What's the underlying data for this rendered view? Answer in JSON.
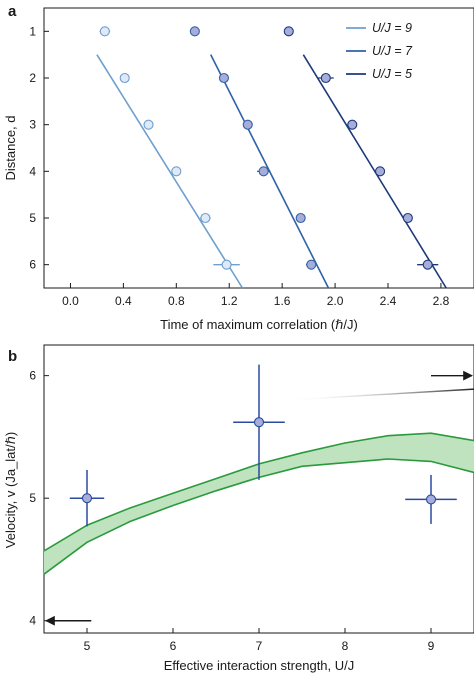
{
  "colors": {
    "u9": "#6e9fcf",
    "u7": "#2f63a8",
    "u5": "#1c3a7a",
    "band_fill": "#bfe3bf",
    "band_line": "#2a9a3c",
    "marker_light": "#dfe9f8",
    "marker_dark": "#a7acd9",
    "errorbar": "#2a4aa0"
  },
  "chart_data": [
    {
      "panel": "a",
      "type": "scatter",
      "xlabel": "Time of maximum correlation (ℏ/J)",
      "ylabel": "Distance, d",
      "xlim": [
        -0.2,
        3.05
      ],
      "ylim": [
        6.5,
        0.5
      ],
      "y_inverted": true,
      "xticks": [
        "0.0",
        "0.4",
        "0.8",
        "1.2",
        "1.6",
        "2.0",
        "2.4",
        "2.8"
      ],
      "xtick_values": [
        0,
        0.4,
        0.8,
        1.2,
        1.6,
        2.0,
        2.4,
        2.8
      ],
      "yticks": [
        "1",
        "2",
        "3",
        "4",
        "5",
        "6"
      ],
      "ytick_values": [
        1,
        2,
        3,
        4,
        5,
        6
      ],
      "legend_position": "top-right",
      "series": [
        {
          "name": "U/J = 9",
          "color_key": "u9",
          "points": [
            {
              "d": 1,
              "t": 0.26,
              "err": 0.04
            },
            {
              "d": 2,
              "t": 0.41,
              "err": 0.02
            },
            {
              "d": 3,
              "t": 0.59,
              "err": 0.02
            },
            {
              "d": 4,
              "t": 0.8,
              "err": 0.02
            },
            {
              "d": 5,
              "t": 1.02,
              "err": 0.04
            },
            {
              "d": 6,
              "t": 1.18,
              "err": 0.1
            }
          ],
          "fit": [
            {
              "t": 0.2,
              "d": 1.5
            },
            {
              "t": 1.3,
              "d": 6.5
            }
          ]
        },
        {
          "name": "U/J = 7",
          "color_key": "u7",
          "points": [
            {
              "d": 1,
              "t": 0.94,
              "err": 0.0
            },
            {
              "d": 2,
              "t": 1.16,
              "err": 0.02
            },
            {
              "d": 3,
              "t": 1.34,
              "err": 0.02
            },
            {
              "d": 4,
              "t": 1.46,
              "err": 0.05
            },
            {
              "d": 5,
              "t": 1.74,
              "err": 0.03
            },
            {
              "d": 6,
              "t": 1.82,
              "err": 0.04
            }
          ],
          "fit": [
            {
              "t": 1.06,
              "d": 1.5
            },
            {
              "t": 1.95,
              "d": 6.5
            }
          ]
        },
        {
          "name": "U/J = 5",
          "color_key": "u5",
          "points": [
            {
              "d": 1,
              "t": 1.65,
              "err": 0.0
            },
            {
              "d": 2,
              "t": 1.93,
              "err": 0.06
            },
            {
              "d": 3,
              "t": 2.13,
              "err": 0.03
            },
            {
              "d": 4,
              "t": 2.34,
              "err": 0.03
            },
            {
              "d": 5,
              "t": 2.55,
              "err": 0.03
            },
            {
              "d": 6,
              "t": 2.7,
              "err": 0.08
            }
          ],
          "fit": [
            {
              "t": 1.76,
              "d": 1.5
            },
            {
              "t": 2.84,
              "d": 6.5
            }
          ]
        }
      ]
    },
    {
      "panel": "b",
      "type": "scatter",
      "xlabel": "Effective interaction strength, U/J",
      "ylabel": "Velocity, v (Ja_lat/ℏ)",
      "xlim": [
        4.5,
        9.5
      ],
      "ylim": [
        3.9,
        6.25
      ],
      "xticks": [
        "5",
        "6",
        "7",
        "8",
        "9"
      ],
      "xtick_values": [
        5,
        6,
        7,
        8,
        9
      ],
      "yticks": [
        "4",
        "5",
        "6"
      ],
      "ytick_values": [
        4,
        5,
        6
      ],
      "points": [
        {
          "x": 5,
          "y": 5.0,
          "xerr": 0.2,
          "yerr": 0.23
        },
        {
          "x": 7,
          "y": 5.62,
          "xerr": 0.3,
          "yerr": 0.47
        },
        {
          "x": 9,
          "y": 4.99,
          "xerr": 0.3,
          "yerr": 0.2
        }
      ],
      "band": {
        "x": [
          4.5,
          5.0,
          5.5,
          6.0,
          6.5,
          7.0,
          7.5,
          8.0,
          8.5,
          9.0,
          9.5
        ],
        "lower": [
          4.38,
          4.64,
          4.81,
          4.94,
          5.06,
          5.17,
          5.26,
          5.29,
          5.32,
          5.3,
          5.21
        ],
        "upper": [
          4.57,
          4.78,
          4.92,
          5.04,
          5.16,
          5.28,
          5.37,
          5.45,
          5.51,
          5.53,
          5.47
        ]
      },
      "arrows": [
        {
          "direction": "right",
          "x_start": 9.0,
          "x_end": 9.5,
          "y": 6.0
        },
        {
          "direction": "left",
          "x_start": 5.05,
          "x_end": 4.5,
          "y": 4.0
        }
      ],
      "gradient_line": [
        {
          "x": 7.3,
          "y": 5.8
        },
        {
          "x": 9.5,
          "y": 5.89
        }
      ]
    }
  ]
}
